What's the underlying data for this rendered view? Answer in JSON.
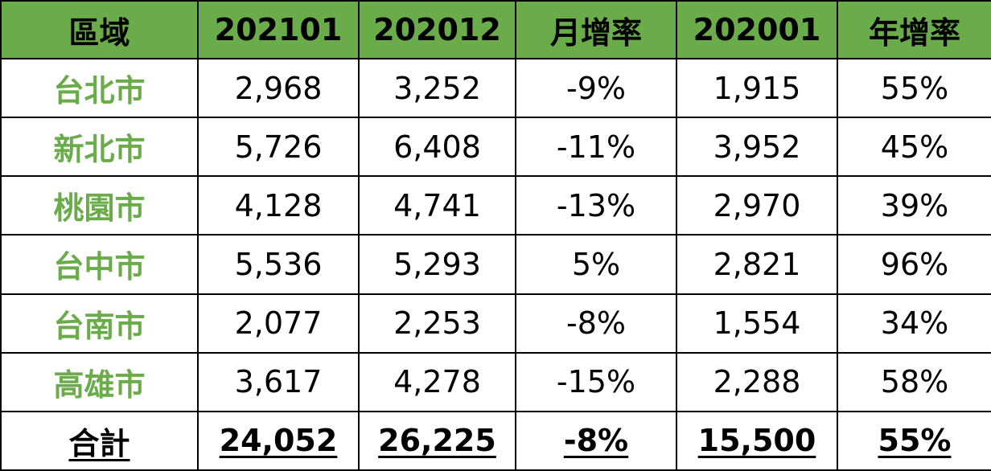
{
  "table": {
    "header": [
      "區域",
      "202101",
      "202012",
      "月增率",
      "202001",
      "年增率"
    ],
    "rows": [
      [
        "台北市",
        "2,968",
        "3,252",
        "-9%",
        "1,915",
        "55%"
      ],
      [
        "新北市",
        "5,726",
        "6,408",
        "-11%",
        "3,952",
        "45%"
      ],
      [
        "桃園市",
        "4,128",
        "4,741",
        "-13%",
        "2,970",
        "39%"
      ],
      [
        "台中市",
        "5,536",
        "5,293",
        "5%",
        "2,821",
        "96%"
      ],
      [
        "台南市",
        "2,077",
        "2,253",
        "-8%",
        "1,554",
        "34%"
      ],
      [
        "高雄市",
        "3,617",
        "4,278",
        "-15%",
        "2,288",
        "58%"
      ]
    ],
    "total": [
      "合計",
      "24,052",
      "26,225",
      "-8%",
      "15,500",
      "55%"
    ]
  }
}
